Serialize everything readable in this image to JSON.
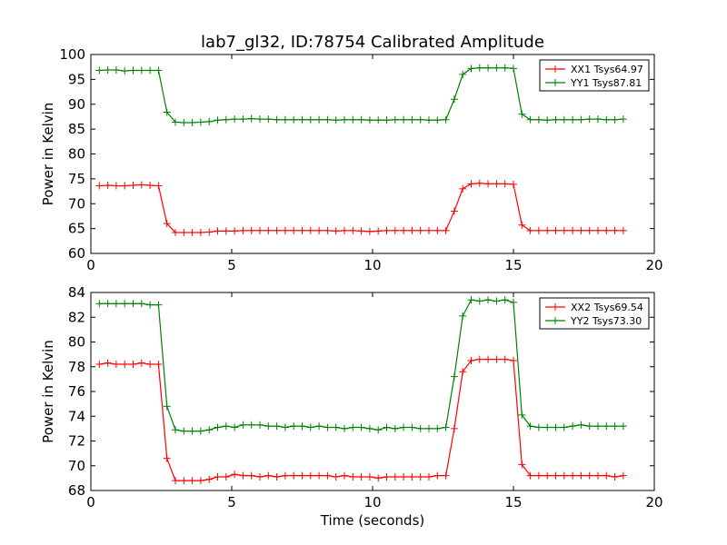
{
  "chart_data": {
    "title": "lab7_gl32, ID:78754 Calibrated Amplitude",
    "xlabel": "Time (seconds)",
    "x": [
      0.3,
      0.6,
      0.9,
      1.2,
      1.5,
      1.8,
      2.1,
      2.4,
      2.7,
      3.0,
      3.3,
      3.6,
      3.9,
      4.2,
      4.5,
      4.8,
      5.1,
      5.4,
      5.7,
      6.0,
      6.3,
      6.6,
      6.9,
      7.2,
      7.5,
      7.8,
      8.1,
      8.4,
      8.7,
      9.0,
      9.3,
      9.6,
      9.9,
      10.2,
      10.5,
      10.8,
      11.1,
      11.4,
      11.7,
      12.0,
      12.3,
      12.6,
      12.9,
      13.2,
      13.5,
      13.8,
      14.1,
      14.4,
      14.7,
      15.0,
      15.3,
      15.6,
      15.9,
      16.2,
      16.5,
      16.8,
      17.1,
      17.4,
      17.7,
      18.0,
      18.3,
      18.6,
      18.9
    ],
    "panels": [
      {
        "type": "line",
        "ylabel": "Power in Kelvin",
        "xlim": [
          0,
          20
        ],
        "ylim": [
          60,
          100
        ],
        "xticks": [
          "0",
          "5",
          "10",
          "15",
          "20"
        ],
        "yticks": [
          "60",
          "65",
          "70",
          "75",
          "80",
          "85",
          "90",
          "95",
          "100"
        ],
        "legend_position": "top-right",
        "series": [
          {
            "name": "XX1 Tsys64.97",
            "color": "#ff0000",
            "values": [
              73.6,
              73.7,
              73.6,
              73.6,
              73.7,
              73.8,
              73.7,
              73.6,
              66.0,
              64.2,
              64.2,
              64.2,
              64.2,
              64.3,
              64.5,
              64.5,
              64.5,
              64.6,
              64.6,
              64.6,
              64.6,
              64.6,
              64.6,
              64.6,
              64.6,
              64.6,
              64.6,
              64.6,
              64.5,
              64.6,
              64.6,
              64.5,
              64.4,
              64.5,
              64.6,
              64.6,
              64.6,
              64.6,
              64.6,
              64.6,
              64.6,
              64.6,
              68.5,
              73.0,
              74.0,
              74.1,
              74.0,
              74.0,
              74.0,
              73.9,
              65.7,
              64.6,
              64.6,
              64.6,
              64.6,
              64.6,
              64.6,
              64.6,
              64.6,
              64.6,
              64.6,
              64.6,
              64.6
            ]
          },
          {
            "name": "YY1 Tsys87.81",
            "color": "#008000",
            "values": [
              96.8,
              96.9,
              96.9,
              96.7,
              96.8,
              96.8,
              96.8,
              96.8,
              88.4,
              86.4,
              86.3,
              86.3,
              86.4,
              86.5,
              86.8,
              86.9,
              87.0,
              87.0,
              87.1,
              87.0,
              87.0,
              86.9,
              86.9,
              86.9,
              86.9,
              86.9,
              86.9,
              86.9,
              86.8,
              86.9,
              86.9,
              86.9,
              86.8,
              86.8,
              86.8,
              86.9,
              86.9,
              86.9,
              86.9,
              86.8,
              86.8,
              86.9,
              91.0,
              96.0,
              97.2,
              97.3,
              97.3,
              97.3,
              97.3,
              97.2,
              88.0,
              86.9,
              86.9,
              86.8,
              86.9,
              86.9,
              86.9,
              86.9,
              87.0,
              87.0,
              86.9,
              86.9,
              87.0
            ]
          }
        ]
      },
      {
        "type": "line",
        "ylabel": "Power in Kelvin",
        "xlim": [
          0,
          20
        ],
        "ylim": [
          68,
          84
        ],
        "xticks": [
          "0",
          "5",
          "10",
          "15",
          "20"
        ],
        "yticks": [
          "68",
          "70",
          "72",
          "74",
          "76",
          "78",
          "80",
          "82",
          "84"
        ],
        "legend_position": "top-right",
        "series": [
          {
            "name": "XX2 Tsys69.54",
            "color": "#ff0000",
            "values": [
              78.2,
              78.3,
              78.2,
              78.2,
              78.2,
              78.3,
              78.2,
              78.2,
              70.6,
              68.8,
              68.8,
              68.8,
              68.8,
              68.9,
              69.1,
              69.1,
              69.3,
              69.2,
              69.2,
              69.1,
              69.2,
              69.1,
              69.2,
              69.2,
              69.2,
              69.2,
              69.2,
              69.2,
              69.1,
              69.2,
              69.1,
              69.1,
              69.1,
              69.0,
              69.1,
              69.1,
              69.1,
              69.1,
              69.1,
              69.1,
              69.2,
              69.2,
              73.0,
              77.6,
              78.5,
              78.6,
              78.6,
              78.6,
              78.6,
              78.5,
              70.1,
              69.2,
              69.2,
              69.2,
              69.2,
              69.2,
              69.2,
              69.2,
              69.2,
              69.2,
              69.2,
              69.1,
              69.2
            ]
          },
          {
            "name": "YY2 Tsys73.30",
            "color": "#008000",
            "values": [
              83.1,
              83.1,
              83.1,
              83.1,
              83.1,
              83.1,
              83.0,
              83.0,
              74.8,
              72.9,
              72.8,
              72.8,
              72.8,
              72.9,
              73.1,
              73.2,
              73.1,
              73.3,
              73.3,
              73.3,
              73.2,
              73.2,
              73.1,
              73.2,
              73.2,
              73.1,
              73.2,
              73.1,
              73.1,
              73.0,
              73.1,
              73.1,
              73.0,
              72.9,
              73.1,
              73.0,
              73.1,
              73.1,
              73.0,
              73.0,
              73.0,
              73.1,
              77.2,
              82.1,
              83.4,
              83.3,
              83.4,
              83.3,
              83.4,
              83.2,
              74.1,
              73.2,
              73.1,
              73.1,
              73.1,
              73.1,
              73.2,
              73.3,
              73.2,
              73.2,
              73.2,
              73.2,
              73.2
            ]
          }
        ]
      }
    ]
  }
}
